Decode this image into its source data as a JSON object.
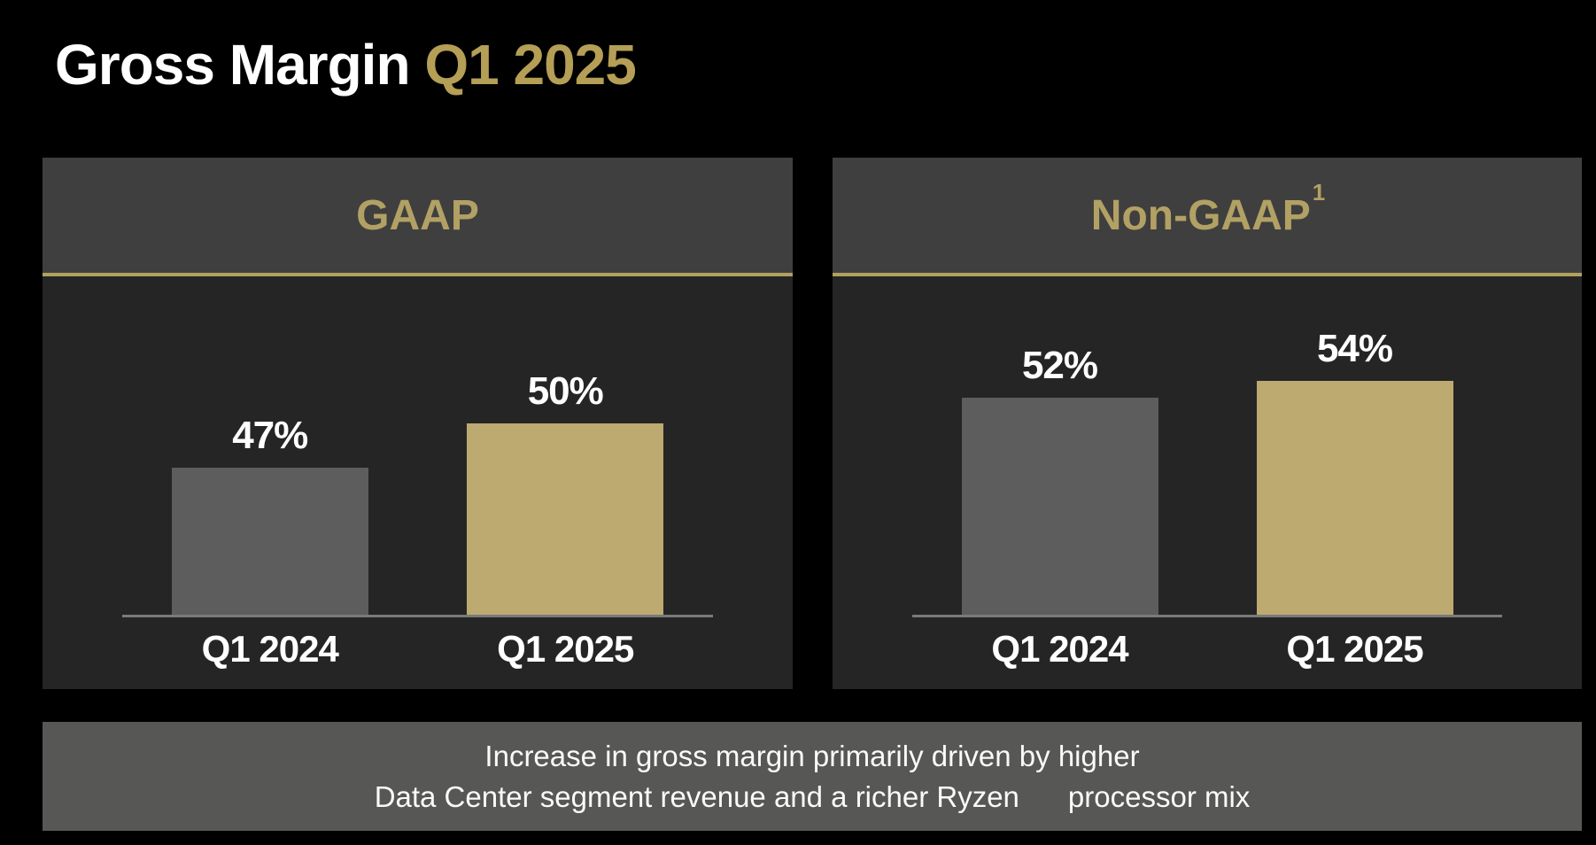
{
  "title": {
    "text_white": "Gross Margin ",
    "text_gold": "Q1 2025"
  },
  "colors": {
    "background": "#000000",
    "panel_header_bg": "#403f3f",
    "panel_chart_bg": "#262525",
    "gold_accent": "#b2a164",
    "gold_line": "#b1a15f",
    "title_gold": "#b59e55",
    "bar_gray": "#5e5d5d",
    "bar_gold": "#bdaa70",
    "axis_gray": "#7a7a7a",
    "footnote_bg": "#575756",
    "text_white": "#ffffff"
  },
  "chart_data": [
    {
      "type": "bar",
      "title": "GAAP",
      "title_superscript": "",
      "categories": [
        "Q1 2024",
        "Q1 2025"
      ],
      "values": [
        47,
        50
      ],
      "value_labels": [
        "47%",
        "50%"
      ],
      "unit": "%",
      "ylim": [
        37,
        60
      ],
      "bar_colors": [
        "#5e5d5d",
        "#bdaa70"
      ],
      "grid": false,
      "legend": "none"
    },
    {
      "type": "bar",
      "title": "Non-GAAP",
      "title_superscript": "1",
      "categories": [
        "Q1 2024",
        "Q1 2025"
      ],
      "values": [
        52,
        54
      ],
      "value_labels": [
        "52%",
        "54%"
      ],
      "unit": "%",
      "ylim": [
        27,
        66
      ],
      "bar_colors": [
        "#5e5d5d",
        "#bdaa70"
      ],
      "grid": false,
      "legend": "none"
    }
  ],
  "footnote_box": {
    "lines": [
      "Increase in gross margin primarily driven by higher",
      "Data Center segment revenue and a richer Ryzen      processor mix"
    ]
  }
}
